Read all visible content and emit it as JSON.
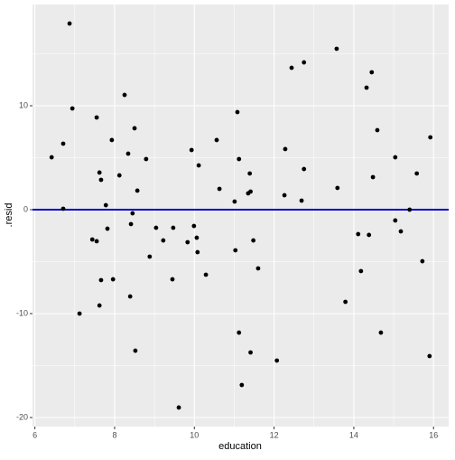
{
  "chart_data": {
    "type": "scatter",
    "x_label": "education",
    "y_label": ".resid",
    "x": [
      6.42,
      6.71,
      6.71,
      6.87,
      6.94,
      7.12,
      7.44,
      7.55,
      7.55,
      7.62,
      7.66,
      7.62,
      7.66,
      7.78,
      7.82,
      7.93,
      7.96,
      8.12,
      8.25,
      8.34,
      8.39,
      8.41,
      8.45,
      8.5,
      8.52,
      8.57,
      8.79,
      8.88,
      9.04,
      9.22,
      9.47,
      9.45,
      9.61,
      9.83,
      9.93,
      9.99,
      10.06,
      10.08,
      10.11,
      10.29,
      10.56,
      10.63,
      11.01,
      11.03,
      11.08,
      11.12,
      11.12,
      11.19,
      11.35,
      11.39,
      11.41,
      11.41,
      11.48,
      11.6,
      12.07,
      12.26,
      12.28,
      12.44,
      12.69,
      12.75,
      12.75,
      13.57,
      13.59,
      13.79,
      14.11,
      14.18,
      14.32,
      14.38,
      14.45,
      14.48,
      14.59,
      14.68,
      15.04,
      15.04,
      15.18,
      15.4,
      15.58,
      15.72,
      15.9,
      15.92
    ],
    "values": [
      5.04,
      6.35,
      0.09,
      17.91,
      9.74,
      -10.0,
      -2.87,
      -3.04,
      8.87,
      3.57,
      2.87,
      -9.22,
      -6.78,
      0.43,
      -1.83,
      6.7,
      -6.7,
      3.3,
      11.04,
      5.39,
      -8.35,
      -1.39,
      -0.35,
      7.83,
      -13.57,
      1.83,
      4.87,
      -4.52,
      -1.74,
      -2.96,
      -1.74,
      -6.7,
      -19.04,
      -3.13,
      5.74,
      -1.57,
      -2.7,
      -4.09,
      4.26,
      -6.26,
      6.7,
      2.0,
      0.78,
      -3.91,
      9.39,
      4.87,
      -11.83,
      -16.87,
      1.57,
      3.48,
      1.74,
      -13.74,
      -2.96,
      -5.65,
      -14.52,
      1.39,
      5.83,
      13.65,
      0.87,
      14.17,
      3.91,
      15.48,
      2.09,
      -8.87,
      -2.35,
      -5.91,
      11.74,
      -2.43,
      13.22,
      3.13,
      7.65,
      -11.83,
      5.04,
      -1.04,
      -2.09,
      0.0,
      3.48,
      -4.96,
      -14.09,
      6.96
    ],
    "color": "#000000",
    "hline": 0,
    "hline_color": "#0000cc",
    "xlim": [
      5.94,
      16.38
    ],
    "ylim": [
      -20.87,
      19.74
    ],
    "xticks": [
      6,
      8,
      10,
      12,
      14,
      16
    ],
    "yticks": [
      -20,
      -10,
      0,
      10
    ],
    "grid": true
  }
}
